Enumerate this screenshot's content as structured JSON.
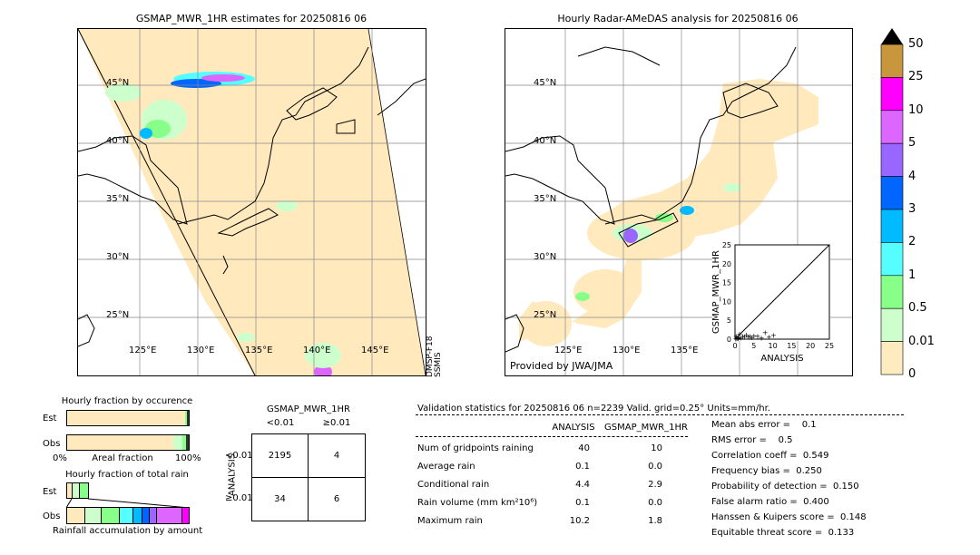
{
  "left_map": {
    "title": "GSMAP_MWR_1HR estimates for 20250816 06",
    "lat_labels": [
      "45°N",
      "40°N",
      "35°N",
      "30°N",
      "25°N"
    ],
    "lon_labels": [
      "125°E",
      "130°E",
      "135°E",
      "140°E",
      "145°E"
    ],
    "satellite_label": "DMSP-F18\nSSMIS"
  },
  "right_map": {
    "title": "Hourly Radar-AMeDAS analysis for 20250816 06",
    "lat_labels": [
      "45°N",
      "40°N",
      "35°N",
      "30°N",
      "25°N"
    ],
    "lon_labels": [
      "125°E",
      "130°E",
      "135°E"
    ],
    "credit": "Provided by JWA/JMA"
  },
  "colorbar": {
    "labels": [
      "50",
      "25",
      "10",
      "5",
      "4",
      "3",
      "2",
      "1",
      "0.5",
      "0.01",
      "0"
    ],
    "colors": [
      "#c8963c",
      "#ff00ff",
      "#dd66ff",
      "#9966ff",
      "#0066ff",
      "#00bbff",
      "#55ffff",
      "#88ff88",
      "#ccffcc",
      "#ffebc0"
    ]
  },
  "chart_data": [
    {
      "type": "scatter",
      "xlabel": "ANALYSIS",
      "ylabel": "GSMAP_MWR_1HR",
      "xlim": [
        0,
        25
      ],
      "ylim": [
        0,
        25
      ],
      "ticks": [
        "0",
        "5",
        "10",
        "15",
        "20",
        "25"
      ],
      "points": [
        [
          0.2,
          0.1
        ],
        [
          0.5,
          0.3
        ],
        [
          1,
          0.5
        ],
        [
          1.5,
          0.4
        ],
        [
          2,
          0.8
        ],
        [
          2.5,
          0.6
        ],
        [
          3,
          1.2
        ],
        [
          3.5,
          0.7
        ],
        [
          4,
          0.9
        ],
        [
          4.5,
          0.5
        ],
        [
          5,
          1.0
        ],
        [
          6,
          0.8
        ],
        [
          7,
          0.4
        ],
        [
          8,
          1.8
        ],
        [
          9,
          0.6
        ],
        [
          10.2,
          1.1
        ],
        [
          0.3,
          0.9
        ],
        [
          1.2,
          1.5
        ],
        [
          0.8,
          0.2
        ]
      ]
    },
    {
      "type": "bar",
      "title": "Hourly fraction by occurence",
      "categories": [
        "Est",
        "Obs"
      ],
      "xlabel": "Areal fraction",
      "x_ticks": [
        "0%",
        "100%"
      ]
    },
    {
      "type": "bar",
      "title": "Hourly fraction of total rain",
      "categories": [
        "Est",
        "Obs"
      ],
      "xlabel": "Rainfall accumulation by amount"
    }
  ],
  "contingency": {
    "title": "GSMAP_MWR_1HR",
    "col_headers": [
      "<0.01",
      "≥0.01"
    ],
    "row_axis_label": "ANALYSIS",
    "row_headers": [
      "<0.01",
      "≥0.01"
    ],
    "cells": [
      [
        "2195",
        "4"
      ],
      [
        "34",
        "6"
      ]
    ]
  },
  "validation": {
    "header": "Validation statistics for 20250816 06  n=2239 Valid. grid=0.25° Units=mm/hr.",
    "col_analysis": "ANALYSIS",
    "col_gsmap": "GSMAP_MWR_1HR",
    "rows": [
      {
        "label": "Num of gridpoints raining",
        "analysis": "40",
        "gsmap": "10"
      },
      {
        "label": "Average rain",
        "analysis": "0.1",
        "gsmap": "0.0"
      },
      {
        "label": "Conditional rain",
        "analysis": "4.4",
        "gsmap": "2.9"
      },
      {
        "label": "Rain volume (mm km²10⁶)",
        "analysis": "0.1",
        "gsmap": "0.0"
      },
      {
        "label": "Maximum rain",
        "analysis": "10.2",
        "gsmap": "1.8"
      }
    ],
    "scores": [
      "Mean abs error =    0.1",
      "RMS error =    0.5",
      "Correlation coeff =  0.549",
      "Frequency bias =  0.250",
      "Probability of detection =  0.150",
      "False alarm ratio =  0.400",
      "Hanssen & Kuipers score =  0.148",
      "Equitable threat score =  0.133"
    ]
  }
}
